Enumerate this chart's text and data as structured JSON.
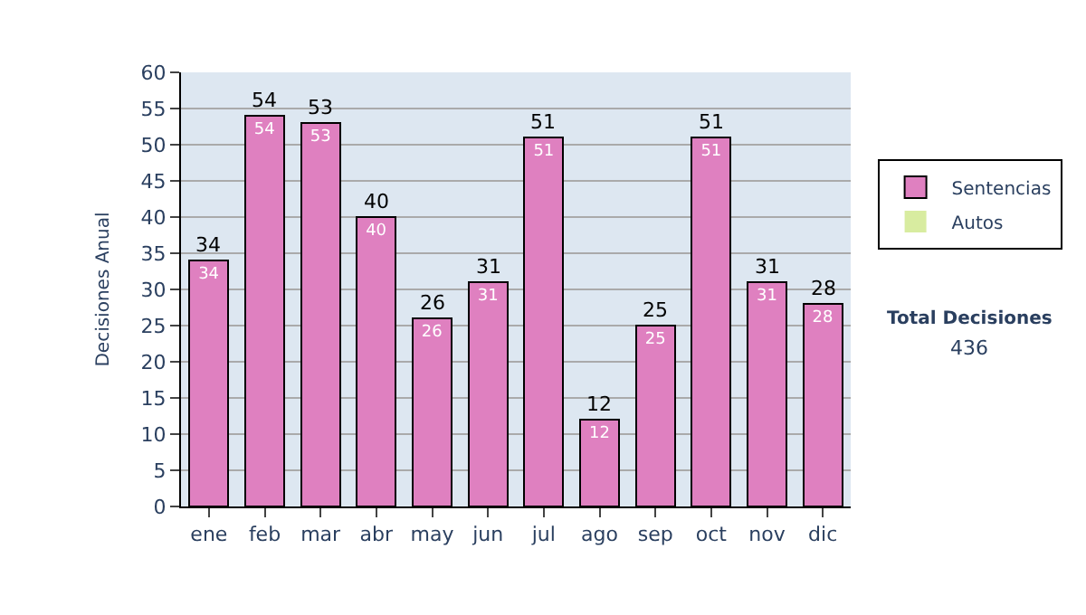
{
  "chart_data": {
    "type": "bar",
    "stacked": true,
    "categories": [
      "ene",
      "feb",
      "mar",
      "abr",
      "may",
      "jun",
      "jul",
      "ago",
      "sep",
      "oct",
      "nov",
      "dic"
    ],
    "series": [
      {
        "name": "Sentencias",
        "color": "#df80c0",
        "values": [
          34,
          54,
          53,
          40,
          26,
          31,
          51,
          12,
          25,
          51,
          31,
          28
        ],
        "value_labels": [
          "34",
          "54",
          "53",
          "40",
          "26",
          "31",
          "51",
          "12",
          "25",
          "51",
          "31",
          "28"
        ]
      },
      {
        "name": "Autos",
        "color": "#d8eca0",
        "values": [
          0,
          0,
          0,
          0,
          0,
          0,
          0,
          0,
          0,
          0,
          0,
          0
        ]
      }
    ],
    "totals": [
      "34",
      "54",
      "53",
      "40",
      "26",
      "31",
      "51",
      "12",
      "25",
      "51",
      "31",
      "28"
    ],
    "ylabel": "Decisiones Anual",
    "ylim": [
      0,
      60
    ],
    "yticks": [
      0,
      5,
      10,
      15,
      20,
      25,
      30,
      35,
      40,
      45,
      50,
      55,
      60
    ],
    "grid": "y",
    "legend": "right",
    "annotations": [
      "Total Decisiones",
      "436"
    ]
  }
}
